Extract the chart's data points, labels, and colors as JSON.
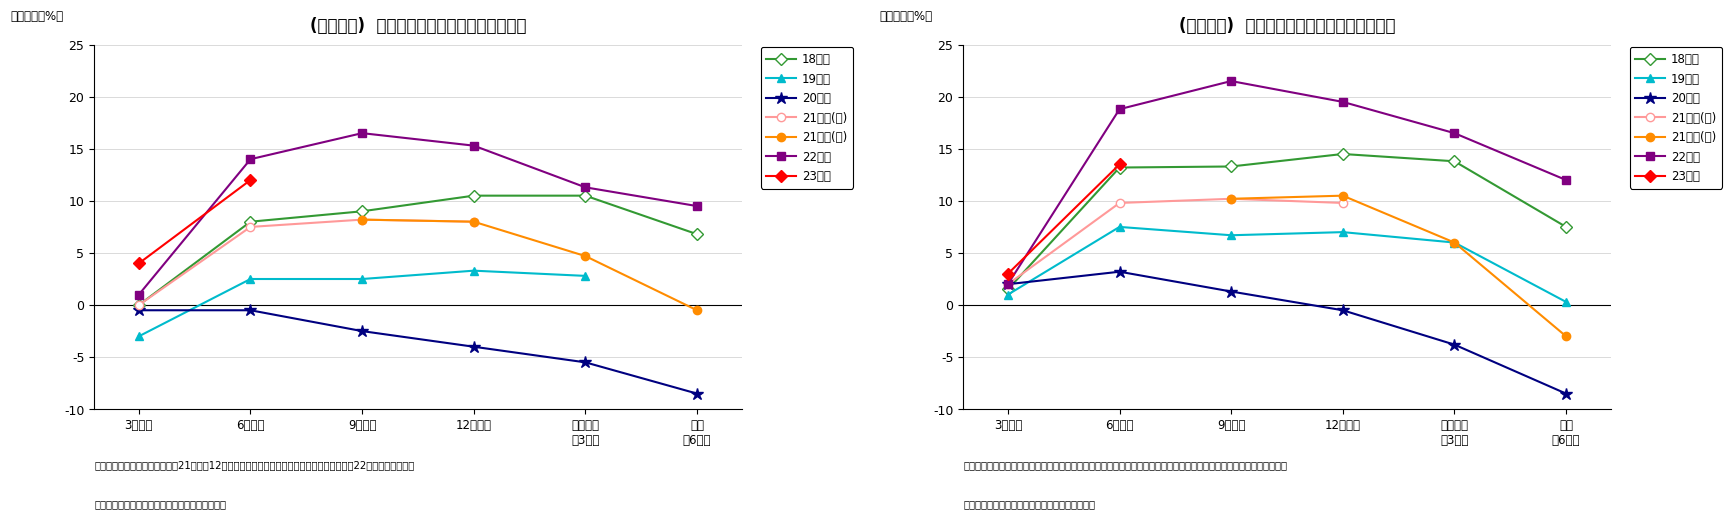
{
  "chart1": {
    "title": "(図表１２)  設備投資計画（全規模・全産業）",
    "ylabel": "（前年比、%）",
    "xlabels": [
      "3月調査",
      "6月調査",
      "9月調査",
      "12月調査",
      "実績見込\n（3月）",
      "実績\n（6月）"
    ],
    "ylim": [
      -10,
      25
    ],
    "yticks": [
      -10,
      -5,
      0,
      5,
      10,
      15,
      20,
      25
    ],
    "series": [
      {
        "label": "18年度",
        "color": "#339933",
        "marker": "D",
        "markerfacecolor": "white",
        "markersize": 6,
        "linewidth": 1.5,
        "data": [
          0.0,
          8.0,
          9.0,
          10.5,
          10.5,
          6.8
        ]
      },
      {
        "label": "19年度",
        "color": "#00BBCC",
        "marker": "^",
        "markerfacecolor": "#00BBCC",
        "markersize": 6,
        "linewidth": 1.5,
        "data": [
          -3.0,
          2.5,
          2.5,
          3.3,
          2.8,
          null
        ]
      },
      {
        "label": "20年度",
        "color": "#000080",
        "marker": "*",
        "markerfacecolor": "#000080",
        "markersize": 9,
        "linewidth": 1.5,
        "data": [
          -0.5,
          -0.5,
          -2.5,
          -4.0,
          -5.5,
          -8.5
        ]
      },
      {
        "label": "21年度(旧)",
        "color": "#FF9999",
        "marker": "o",
        "markerfacecolor": "white",
        "markersize": 6,
        "linewidth": 1.5,
        "data": [
          0.0,
          7.5,
          8.2,
          8.0,
          null,
          null
        ]
      },
      {
        "label": "21年度(新)",
        "color": "#FF8C00",
        "marker": "o",
        "markerfacecolor": "#FF8C00",
        "markersize": 6,
        "linewidth": 1.5,
        "data": [
          null,
          null,
          8.2,
          8.0,
          4.7,
          -0.5
        ]
      },
      {
        "label": "22年度",
        "color": "#800080",
        "marker": "s",
        "markerfacecolor": "#800080",
        "markersize": 6,
        "linewidth": 1.5,
        "data": [
          1.0,
          14.0,
          16.5,
          15.3,
          11.3,
          9.5
        ]
      },
      {
        "label": "23年度",
        "color": "#FF0000",
        "marker": "D",
        "markerfacecolor": "#FF0000",
        "markersize": 6,
        "linewidth": 1.5,
        "data": [
          4.0,
          12.0,
          null,
          null,
          null,
          null
        ]
      }
    ],
    "note1": "（注）リース会計対応ベース。21年度分12月調査は新旧併記、実績見込み以降は新ベース、22年度分は新ベース",
    "note2": "（資料）日本銀行「全国企業短期経済観測調査」"
  },
  "chart2": {
    "title": "(図表１３)  設備投資計画（大企業・全産業）",
    "ylabel": "（前年比、%）",
    "xlabels": [
      "3月調査",
      "6月調査",
      "9月調査",
      "12月調査",
      "実績見込\n（3月）",
      "実績\n（6月）"
    ],
    "ylim": [
      -10,
      25
    ],
    "yticks": [
      -10,
      -5,
      0,
      5,
      10,
      15,
      20,
      25
    ],
    "series": [
      {
        "label": "18年度",
        "color": "#339933",
        "marker": "D",
        "markerfacecolor": "white",
        "markersize": 6,
        "linewidth": 1.5,
        "data": [
          1.5,
          13.2,
          13.3,
          14.5,
          13.8,
          7.5
        ]
      },
      {
        "label": "19年度",
        "color": "#00BBCC",
        "marker": "^",
        "markerfacecolor": "#00BBCC",
        "markersize": 6,
        "linewidth": 1.5,
        "data": [
          1.0,
          7.5,
          6.7,
          7.0,
          6.0,
          0.3
        ]
      },
      {
        "label": "20年度",
        "color": "#000080",
        "marker": "*",
        "markerfacecolor": "#000080",
        "markersize": 9,
        "linewidth": 1.5,
        "data": [
          2.0,
          3.2,
          1.3,
          -0.5,
          -3.8,
          -8.5
        ]
      },
      {
        "label": "21年度(旧)",
        "color": "#FF9999",
        "marker": "o",
        "markerfacecolor": "white",
        "markersize": 6,
        "linewidth": 1.5,
        "data": [
          2.0,
          9.8,
          10.2,
          9.8,
          null,
          null
        ]
      },
      {
        "label": "21年度(新)",
        "color": "#FF8C00",
        "marker": "o",
        "markerfacecolor": "#FF8C00",
        "markersize": 6,
        "linewidth": 1.5,
        "data": [
          null,
          null,
          10.2,
          10.5,
          6.0,
          -3.0
        ]
      },
      {
        "label": "22年度",
        "color": "#800080",
        "marker": "s",
        "markerfacecolor": "#800080",
        "markersize": 6,
        "linewidth": 1.5,
        "data": [
          2.0,
          18.8,
          21.5,
          19.5,
          16.5,
          12.0
        ]
      },
      {
        "label": "23年度",
        "color": "#FF0000",
        "marker": "D",
        "markerfacecolor": "#FF0000",
        "markersize": 6,
        "linewidth": 1.5,
        "data": [
          3.0,
          13.5,
          null,
          null,
          null,
          null
        ]
      }
    ],
    "note1": "（注）リース会計対応ベース。２１年度分は１２月調査は新旧併記、実績見込み以降は新ベース、２２年度分は新ベース",
    "note2": "（資料）日本銀行「全国企業短期経済観測調査」"
  }
}
